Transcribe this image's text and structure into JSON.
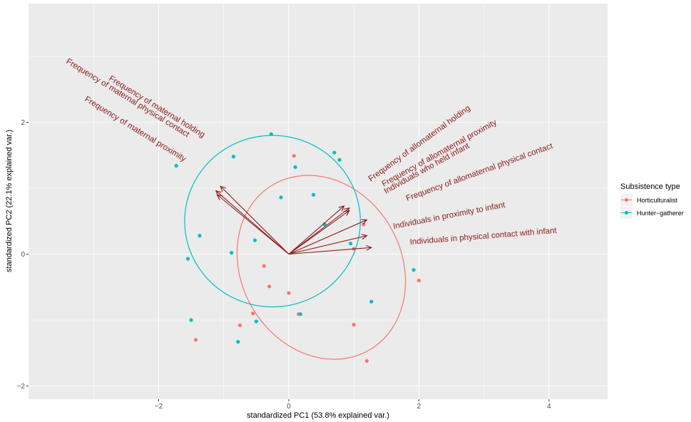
{
  "chart_data": {
    "type": "scatter",
    "subtype": "pca-biplot",
    "xlabel": "standardized PC1 (53.8% explained var.)",
    "ylabel": "standardized PC2 (22.1% explained var.)",
    "xlim": [
      -4.0,
      4.9
    ],
    "ylim": [
      -2.2,
      3.8
    ],
    "x_ticks": [
      -2,
      0,
      2,
      4
    ],
    "y_ticks": [
      -2,
      0,
      2
    ],
    "x_tick_labels": [
      "−2",
      "0",
      "2",
      "4"
    ],
    "y_tick_labels": [
      "−2",
      "0",
      "2"
    ],
    "grid": true,
    "legend": {
      "title": "Subsistence type",
      "position": "right",
      "entries": [
        "Horticulturalist",
        "Hunter−gatherer"
      ]
    },
    "colors": {
      "Horticulturalist": "#F8766D",
      "Hunter−gatherer": "#00BFC4",
      "arrow": "#8B1A1A",
      "panel": "#EBEBEB",
      "grid": "#FFFFFF"
    },
    "series": [
      {
        "name": "Horticulturalist",
        "points": [
          [
            0.08,
            1.49
          ],
          [
            1.15,
            0.45
          ],
          [
            1.0,
            0.08
          ],
          [
            -0.38,
            -0.18
          ],
          [
            -0.3,
            -0.49
          ],
          [
            -0.55,
            -0.9
          ],
          [
            0.0,
            -0.59
          ],
          [
            0.15,
            -0.91
          ],
          [
            1.0,
            -1.07
          ],
          [
            1.2,
            -1.62
          ],
          [
            -0.75,
            -1.08
          ],
          [
            2.0,
            -0.4
          ],
          [
            -1.43,
            -1.3
          ]
        ],
        "ellipse": {
          "center": [
            0.5,
            -0.2
          ],
          "rx": 1.23,
          "ry": 1.45,
          "rotation_deg": 30
        }
      },
      {
        "name": "Hunter−gatherer",
        "points": [
          [
            -0.27,
            1.82
          ],
          [
            -0.85,
            1.48
          ],
          [
            0.1,
            1.32
          ],
          [
            -0.12,
            0.86
          ],
          [
            0.38,
            0.9
          ],
          [
            0.7,
            1.54
          ],
          [
            0.78,
            1.43
          ],
          [
            0.55,
            0.45
          ],
          [
            -1.73,
            1.34
          ],
          [
            -1.37,
            0.28
          ],
          [
            -1.55,
            -0.07
          ],
          [
            -0.52,
            0.21
          ],
          [
            -0.88,
            0.02
          ],
          [
            0.95,
            0.16
          ],
          [
            1.92,
            -0.24
          ],
          [
            1.27,
            -0.72
          ],
          [
            -1.5,
            -1.0
          ],
          [
            -0.5,
            -1.02
          ],
          [
            0.18,
            -0.91
          ],
          [
            -0.78,
            -1.33
          ]
        ],
        "ellipse": {
          "center": [
            -0.25,
            0.5
          ],
          "rx": 1.35,
          "ry": 1.3,
          "rotation_deg": 0
        }
      }
    ],
    "arrows": [
      {
        "label": "Frequency of maternal holding",
        "x": -1.05,
        "y": 1.03
      },
      {
        "label": "Frequency of maternal physical contact",
        "x": -1.12,
        "y": 0.96
      },
      {
        "label": "Frequency of maternal proximity",
        "x": -1.1,
        "y": 0.9
      },
      {
        "label": "Frequency of allomaternal holding",
        "x": 0.85,
        "y": 0.73
      },
      {
        "label": "Frequency of allomaternal proximity",
        "x": 0.93,
        "y": 0.7
      },
      {
        "label": "Individuals who held infant",
        "x": 0.93,
        "y": 0.66
      },
      {
        "label": "Frequency of allomaternal physical contact",
        "x": 1.2,
        "y": 0.52
      },
      {
        "label": "Individuals in proximity to infant",
        "x": 1.2,
        "y": 0.28
      },
      {
        "label": "Individuals in physical contact with infant",
        "x": 1.27,
        "y": 0.1
      }
    ]
  }
}
